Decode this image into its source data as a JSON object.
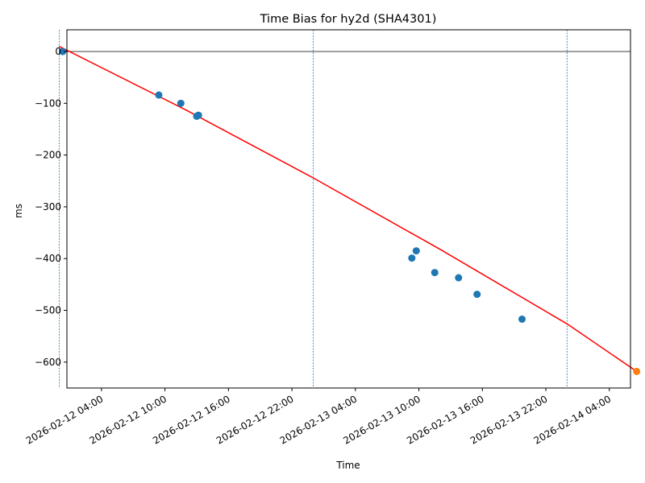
{
  "chart_data": {
    "type": "scatter",
    "title": "Time Bias for hy2d (SHA4301)",
    "xlabel": "Time",
    "ylabel": "ms",
    "xlim": [
      "2026-02-12T00:44:00",
      "2026-02-14T06:00:00"
    ],
    "ylim": [
      -650,
      42
    ],
    "grid": false,
    "yticks": [
      0,
      -100,
      -200,
      -300,
      -400,
      -500,
      -600
    ],
    "ytick_labels": [
      "0",
      "−100",
      "−200",
      "−300",
      "−400",
      "−500",
      "−600"
    ],
    "xticks": [
      "2026-02-12T04:00:00",
      "2026-02-12T10:00:00",
      "2026-02-12T16:00:00",
      "2026-02-12T22:00:00",
      "2026-02-13T04:00:00",
      "2026-02-13T10:00:00",
      "2026-02-13T16:00:00",
      "2026-02-13T22:00:00",
      "2026-02-14T04:00:00"
    ],
    "xtick_labels": [
      "2026-02-12 04:00",
      "2026-02-12 10:00",
      "2026-02-12 16:00",
      "2026-02-12 22:00",
      "2026-02-13 04:00",
      "2026-02-13 10:00",
      "2026-02-13 16:00",
      "2026-02-13 22:00",
      "2026-02-14 04:00"
    ],
    "reference_line_y": 0,
    "vertical_lines": [
      "2026-02-12T00:00:00",
      "2026-02-13T00:00:00",
      "2026-02-14T00:00:00"
    ],
    "series": [
      {
        "color": "#1f77b4",
        "points": [
          {
            "x": "2026-02-12T00:20:00",
            "y": 0
          },
          {
            "x": "2026-02-12T09:25:00",
            "y": -84
          },
          {
            "x": "2026-02-12T11:30:00",
            "y": -100
          },
          {
            "x": "2026-02-12T13:00:00",
            "y": -125
          },
          {
            "x": "2026-02-12T13:10:00",
            "y": -123
          },
          {
            "x": "2026-02-13T09:20:00",
            "y": -399
          },
          {
            "x": "2026-02-13T09:45:00",
            "y": -385
          },
          {
            "x": "2026-02-13T11:30:00",
            "y": -427
          },
          {
            "x": "2026-02-13T13:45:00",
            "y": -437
          },
          {
            "x": "2026-02-13T15:30:00",
            "y": -469
          },
          {
            "x": "2026-02-13T19:45:00",
            "y": -517
          }
        ]
      },
      {
        "color": "#ff7f0e",
        "points": [
          {
            "x": "2026-02-14T06:35:00",
            "y": -618
          }
        ]
      }
    ],
    "fit_line": {
      "color": "#ff0000",
      "points": [
        {
          "x": "2026-02-12T00:00:00",
          "y": 10
        },
        {
          "x": "2026-02-12T12:00:00",
          "y": -113
        },
        {
          "x": "2026-02-13T00:00:00",
          "y": -244
        },
        {
          "x": "2026-02-13T12:00:00",
          "y": -382
        },
        {
          "x": "2026-02-14T00:00:00",
          "y": -526
        },
        {
          "x": "2026-02-14T06:35:00",
          "y": -618
        }
      ]
    }
  }
}
